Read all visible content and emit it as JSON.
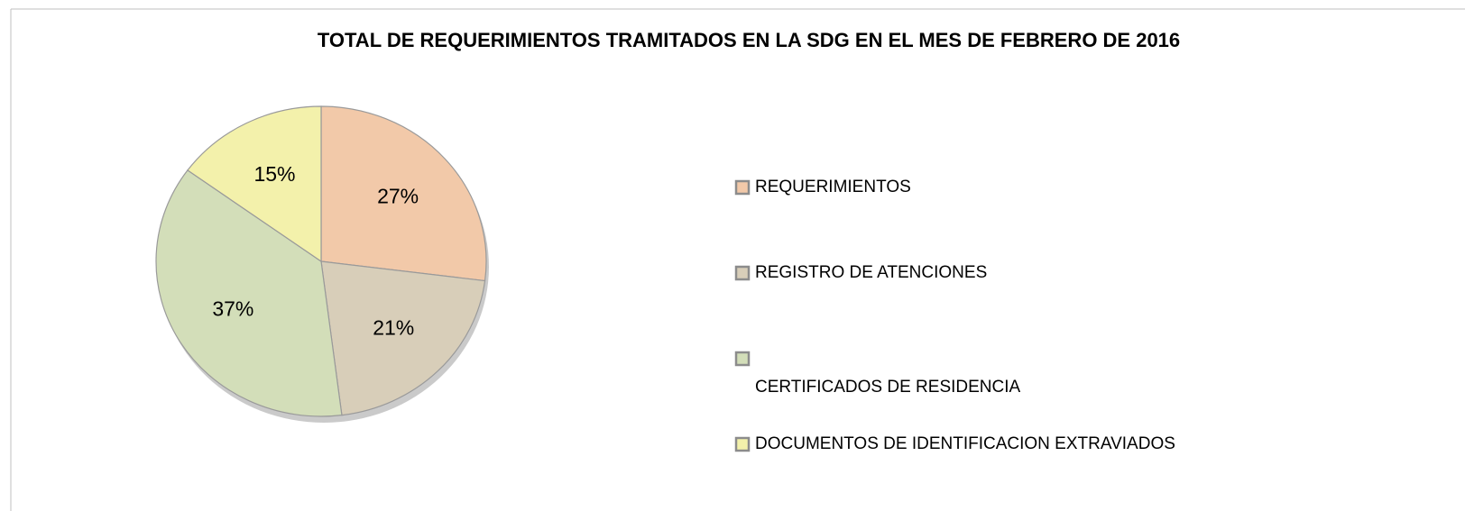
{
  "chart_data": {
    "type": "pie",
    "title": "TOTAL DE REQUERIMIENTOS TRAMITADOS EN LA SDG EN EL MES DE FEBRERO DE 2016",
    "categories": [
      "REQUERIMIENTOS",
      "REGISTRO DE ATENCIONES",
      "CERTIFICADOS DE RESIDENCIA",
      "DOCUMENTOS DE IDENTIFICACION EXTRAVIADOS"
    ],
    "values": [
      27,
      21,
      37,
      15
    ],
    "value_labels": [
      "27%",
      "21%",
      "37%",
      "15%"
    ],
    "colors": [
      "#f2c9a9",
      "#d8ceb9",
      "#d3deb9",
      "#f3f1ab"
    ],
    "legend": "right"
  }
}
